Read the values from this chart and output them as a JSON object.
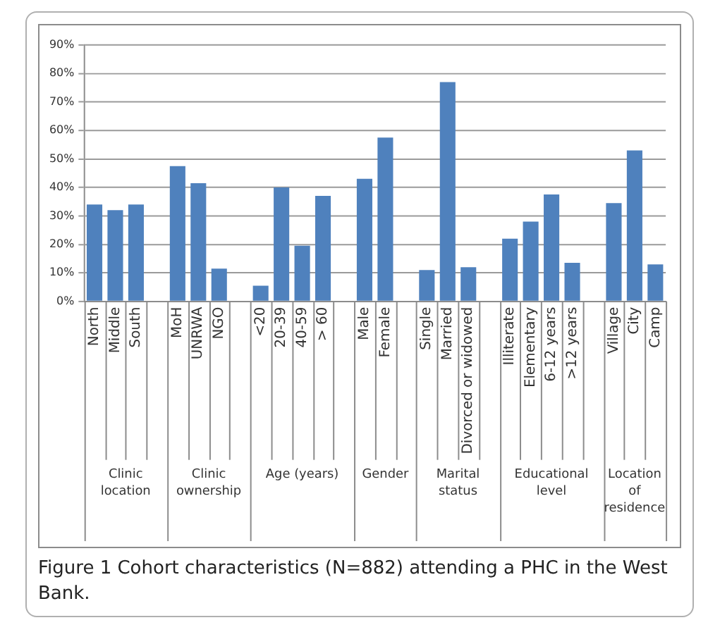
{
  "chart_data": {
    "type": "bar",
    "categories": [
      "North",
      "Middle",
      "South",
      null,
      "MoH",
      "UNRWA",
      "NGO",
      null,
      "<20",
      "20-39",
      "40-59",
      "> 60",
      null,
      "Male",
      "Female",
      null,
      "Single",
      "Married",
      "Divorced or widowed",
      null,
      "Illiterate",
      "Elementary",
      "6-12 years",
      ">12 years",
      null,
      "Village",
      "City",
      "Camp"
    ],
    "values": [
      34,
      32,
      34,
      null,
      47.5,
      41.5,
      11.5,
      null,
      5.5,
      40,
      19.5,
      37,
      null,
      43,
      57.5,
      null,
      11,
      77,
      12,
      null,
      22,
      28,
      37.5,
      13.5,
      null,
      34.5,
      53,
      13
    ],
    "color": "#4f81bd",
    "ylim": [
      0,
      90
    ],
    "yticks": [
      {
        "value": 0,
        "label": "0%"
      },
      {
        "value": 10,
        "label": "10%"
      },
      {
        "value": 20,
        "label": "20%"
      },
      {
        "value": 30,
        "label": "30%"
      },
      {
        "value": 40,
        "label": "40%"
      },
      {
        "value": 50,
        "label": "50%"
      },
      {
        "value": 60,
        "label": "60%"
      },
      {
        "value": 70,
        "label": "70%"
      },
      {
        "value": 80,
        "label": "80%"
      },
      {
        "value": 90,
        "label": "90%"
      }
    ],
    "grid": "y",
    "legend": false,
    "annotations": [
      "Clinic location",
      "Clinic ownership",
      "Age (years)",
      "Gender",
      "Marital status",
      "Educational level",
      "Location of residence",
      "Figure 1 Cohort characteristics (N=882) attending a PHC in the West Bank."
    ]
  }
}
